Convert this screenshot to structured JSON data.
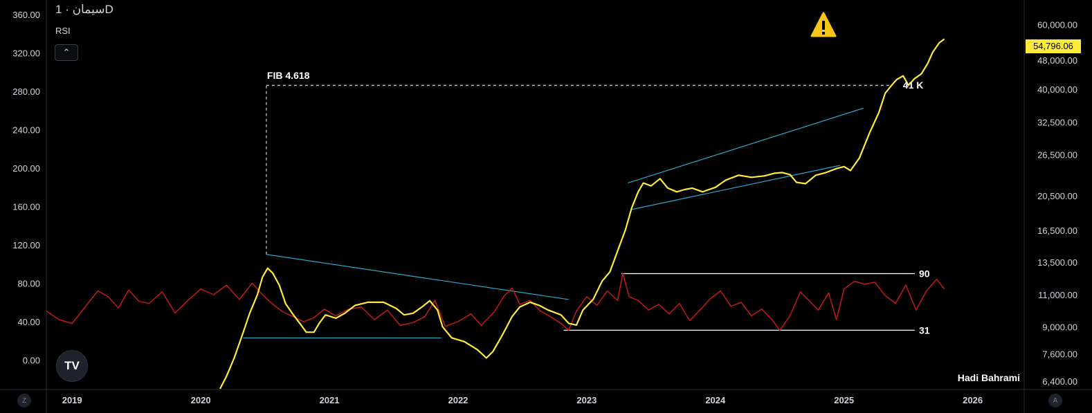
{
  "header": {
    "title": "سیمان · 1D",
    "indicator": "RSI",
    "collapse_icon": "chevron-up-icon"
  },
  "watermark": "Hadi Bahrami",
  "logo_text": "TV",
  "left_corner_label": "Z",
  "right_corner_label": "A",
  "colors": {
    "price": "#ffeb3b",
    "rsi": "#c41a1a",
    "trendline": "#2ea8c9",
    "level": "#ffffff",
    "background": "#000000",
    "warning": "#f5c518"
  },
  "chart_data": {
    "type": "line",
    "x_axis": {
      "labels": [
        "2019",
        "2020",
        "2021",
        "2022",
        "2023",
        "2024",
        "2025",
        "2026"
      ],
      "range": [
        2018.8,
        2026.4
      ]
    },
    "left_axis": {
      "labels": [
        "360.00",
        "320.00",
        "280.00",
        "240.00",
        "200.00",
        "160.00",
        "120.00",
        "80.00",
        "40.00",
        "0.00"
      ],
      "range": [
        -30,
        375
      ]
    },
    "right_axis": {
      "scale": "log",
      "labels": [
        "60,000.00",
        "48,000.00",
        "40,000.00",
        "32,500.00",
        "26,500.00",
        "20,500.00",
        "16,500.00",
        "13,500.00",
        "11,000.00",
        "9,000.00",
        "7,600.00",
        "6,400.00"
      ],
      "range": [
        6100,
        70000
      ],
      "last_price_label": "54,796.06"
    },
    "series": [
      {
        "name": "سیمان",
        "axis": "right",
        "points": [
          [
            2020.15,
            6100
          ],
          [
            2020.2,
            6600
          ],
          [
            2020.26,
            7400
          ],
          [
            2020.31,
            8300
          ],
          [
            2020.34,
            8900
          ],
          [
            2020.38,
            9800
          ],
          [
            2020.44,
            11000
          ],
          [
            2020.48,
            12300
          ],
          [
            2020.52,
            13000
          ],
          [
            2020.56,
            12600
          ],
          [
            2020.61,
            11700
          ],
          [
            2020.66,
            10400
          ],
          [
            2020.72,
            9700
          ],
          [
            2020.78,
            9100
          ],
          [
            2020.82,
            8700
          ],
          [
            2020.88,
            8700
          ],
          [
            2020.92,
            9200
          ],
          [
            2020.97,
            9700
          ],
          [
            2021.05,
            9500
          ],
          [
            2021.12,
            9800
          ],
          [
            2021.2,
            10300
          ],
          [
            2021.3,
            10500
          ],
          [
            2021.42,
            10500
          ],
          [
            2021.52,
            10100
          ],
          [
            2021.58,
            9700
          ],
          [
            2021.65,
            9800
          ],
          [
            2021.72,
            10200
          ],
          [
            2021.78,
            10600
          ],
          [
            2021.84,
            10000
          ],
          [
            2021.88,
            9000
          ],
          [
            2021.95,
            8400
          ],
          [
            2022.05,
            8200
          ],
          [
            2022.15,
            7800
          ],
          [
            2022.22,
            7400
          ],
          [
            2022.27,
            7700
          ],
          [
            2022.34,
            8500
          ],
          [
            2022.42,
            9600
          ],
          [
            2022.48,
            10200
          ],
          [
            2022.56,
            10500
          ],
          [
            2022.63,
            10300
          ],
          [
            2022.7,
            10000
          ],
          [
            2022.8,
            9700
          ],
          [
            2022.86,
            9200
          ],
          [
            2022.92,
            9100
          ],
          [
            2022.97,
            10000
          ],
          [
            2023.05,
            10700
          ],
          [
            2023.12,
            12000
          ],
          [
            2023.18,
            12700
          ],
          [
            2023.24,
            14500
          ],
          [
            2023.3,
            16500
          ],
          [
            2023.35,
            19000
          ],
          [
            2023.4,
            21000
          ],
          [
            2023.44,
            22200
          ],
          [
            2023.5,
            21800
          ],
          [
            2023.57,
            22800
          ],
          [
            2023.63,
            21500
          ],
          [
            2023.7,
            21000
          ],
          [
            2023.76,
            21300
          ],
          [
            2023.82,
            21500
          ],
          [
            2023.9,
            21000
          ],
          [
            2024.0,
            21600
          ],
          [
            2024.08,
            22600
          ],
          [
            2024.18,
            23300
          ],
          [
            2024.28,
            23000
          ],
          [
            2024.38,
            23200
          ],
          [
            2024.46,
            23600
          ],
          [
            2024.52,
            23700
          ],
          [
            2024.58,
            23400
          ],
          [
            2024.63,
            22300
          ],
          [
            2024.7,
            22100
          ],
          [
            2024.78,
            23300
          ],
          [
            2024.86,
            23700
          ],
          [
            2024.94,
            24300
          ],
          [
            2025.0,
            24600
          ],
          [
            2025.05,
            24000
          ],
          [
            2025.12,
            26000
          ],
          [
            2025.2,
            30500
          ],
          [
            2025.27,
            34500
          ],
          [
            2025.32,
            39000
          ],
          [
            2025.37,
            41000
          ],
          [
            2025.41,
            42500
          ],
          [
            2025.46,
            43500
          ],
          [
            2025.5,
            41000
          ],
          [
            2025.55,
            42800
          ],
          [
            2025.6,
            44000
          ],
          [
            2025.65,
            47000
          ],
          [
            2025.69,
            50500
          ],
          [
            2025.74,
            53500
          ],
          [
            2025.78,
            54796.06
          ]
        ]
      },
      {
        "name": "RSI",
        "axis": "left",
        "points": [
          [
            2018.8,
            51
          ],
          [
            2018.9,
            42
          ],
          [
            2019.0,
            38
          ],
          [
            2019.1,
            55
          ],
          [
            2019.2,
            72
          ],
          [
            2019.28,
            66
          ],
          [
            2019.36,
            54
          ],
          [
            2019.44,
            73
          ],
          [
            2019.52,
            61
          ],
          [
            2019.6,
            59
          ],
          [
            2019.7,
            71
          ],
          [
            2019.8,
            49
          ],
          [
            2019.9,
            62
          ],
          [
            2020.0,
            74
          ],
          [
            2020.1,
            68
          ],
          [
            2020.2,
            78
          ],
          [
            2020.3,
            63
          ],
          [
            2020.4,
            80
          ],
          [
            2020.48,
            68
          ],
          [
            2020.56,
            58
          ],
          [
            2020.64,
            50
          ],
          [
            2020.72,
            45
          ],
          [
            2020.8,
            40
          ],
          [
            2020.88,
            44
          ],
          [
            2020.96,
            53
          ],
          [
            2021.05,
            46
          ],
          [
            2021.15,
            53
          ],
          [
            2021.25,
            55
          ],
          [
            2021.35,
            42
          ],
          [
            2021.45,
            52
          ],
          [
            2021.55,
            36
          ],
          [
            2021.65,
            39
          ],
          [
            2021.74,
            45
          ],
          [
            2021.82,
            62
          ],
          [
            2021.9,
            35
          ],
          [
            2022.0,
            40
          ],
          [
            2022.1,
            48
          ],
          [
            2022.18,
            36
          ],
          [
            2022.28,
            50
          ],
          [
            2022.36,
            67
          ],
          [
            2022.42,
            75
          ],
          [
            2022.48,
            58
          ],
          [
            2022.56,
            62
          ],
          [
            2022.64,
            51
          ],
          [
            2022.72,
            45
          ],
          [
            2022.8,
            38
          ],
          [
            2022.86,
            31
          ],
          [
            2022.92,
            51
          ],
          [
            2023.0,
            66
          ],
          [
            2023.08,
            57
          ],
          [
            2023.16,
            72
          ],
          [
            2023.24,
            62
          ],
          [
            2023.28,
            90
          ],
          [
            2023.33,
            66
          ],
          [
            2023.4,
            62
          ],
          [
            2023.48,
            52
          ],
          [
            2023.56,
            58
          ],
          [
            2023.64,
            48
          ],
          [
            2023.72,
            59
          ],
          [
            2023.8,
            41
          ],
          [
            2023.88,
            52
          ],
          [
            2023.96,
            64
          ],
          [
            2024.04,
            72
          ],
          [
            2024.12,
            56
          ],
          [
            2024.2,
            60
          ],
          [
            2024.28,
            46
          ],
          [
            2024.36,
            53
          ],
          [
            2024.44,
            42
          ],
          [
            2024.5,
            31
          ],
          [
            2024.58,
            46
          ],
          [
            2024.66,
            71
          ],
          [
            2024.72,
            63
          ],
          [
            2024.8,
            52
          ],
          [
            2024.88,
            70
          ],
          [
            2024.94,
            42
          ],
          [
            2025.0,
            74
          ],
          [
            2025.08,
            82
          ],
          [
            2025.16,
            79
          ],
          [
            2025.24,
            81
          ],
          [
            2025.32,
            67
          ],
          [
            2025.4,
            59
          ],
          [
            2025.48,
            78
          ],
          [
            2025.56,
            52
          ],
          [
            2025.64,
            72
          ],
          [
            2025.72,
            84
          ],
          [
            2025.78,
            74
          ]
        ]
      }
    ],
    "annotations": [
      {
        "name": "fib-label",
        "text": "FIB 4.618"
      },
      {
        "name": "target-label",
        "text": "41 K"
      },
      {
        "name": "rsi-upper-label",
        "text": "90"
      },
      {
        "name": "rsi-lower-label",
        "text": "31"
      }
    ],
    "drawings": {
      "fib_vertical": {
        "x": 2020.51,
        "from_rsi": 110,
        "to_price": 41000
      },
      "fib_horizontal": {
        "x1": 2020.51,
        "x2": 2025.35,
        "price": 41000
      },
      "rsi_upper_level": {
        "x1": 2023.27,
        "x2": 2025.55,
        "rsi": 90
      },
      "rsi_lower_level": {
        "x1": 2022.82,
        "x2": 2025.55,
        "rsi": 31
      },
      "trendlines": [
        {
          "axis": "rsi",
          "x1": 2020.51,
          "y1": 110,
          "x2": 2022.86,
          "y2": 63
        },
        {
          "axis": "rsi",
          "x1": 2020.33,
          "y1": 23,
          "x2": 2021.87,
          "y2": 23
        },
        {
          "axis": "price",
          "x1": 2023.32,
          "y1": 22200,
          "x2": 2025.15,
          "y2": 35500
        },
        {
          "axis": "price",
          "x1": 2023.35,
          "y1": 18800,
          "x2": 2024.97,
          "y2": 24800
        }
      ]
    },
    "warning_icon": "warning-triangle-icon",
    "grid": false
  }
}
